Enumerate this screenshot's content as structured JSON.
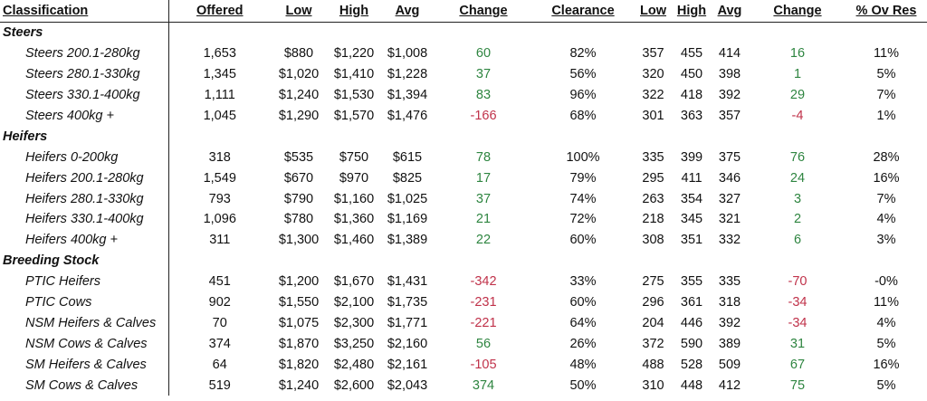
{
  "headers": [
    "Classification",
    "Offered",
    "Low",
    "High",
    "Avg",
    "Change",
    "Clearance",
    "Low",
    "High",
    "Avg",
    "Change",
    "% Ov Res"
  ],
  "rows": [
    {
      "type": "group",
      "label": "Steers"
    },
    {
      "type": "item",
      "label": "Steers 200.1-280kg",
      "offered": "1,653",
      "low": "$880",
      "high": "$1,220",
      "avg": "$1,008",
      "change": "60",
      "change_sign": "pos",
      "clearance": "82%",
      "low2": "357",
      "high2": "455",
      "avg2": "414",
      "change2": "16",
      "change2_sign": "pos",
      "ovres": "11%"
    },
    {
      "type": "item",
      "label": "Steers 280.1-330kg",
      "offered": "1,345",
      "low": "$1,020",
      "high": "$1,410",
      "avg": "$1,228",
      "change": "37",
      "change_sign": "pos",
      "clearance": "56%",
      "low2": "320",
      "high2": "450",
      "avg2": "398",
      "change2": "1",
      "change2_sign": "pos",
      "ovres": "5%"
    },
    {
      "type": "item",
      "label": "Steers 330.1-400kg",
      "offered": "1,111",
      "low": "$1,240",
      "high": "$1,530",
      "avg": "$1,394",
      "change": "83",
      "change_sign": "pos",
      "clearance": "96%",
      "low2": "322",
      "high2": "418",
      "avg2": "392",
      "change2": "29",
      "change2_sign": "pos",
      "ovres": "7%"
    },
    {
      "type": "item",
      "label": "Steers 400kg +",
      "offered": "1,045",
      "low": "$1,290",
      "high": "$1,570",
      "avg": "$1,476",
      "change": "-166",
      "change_sign": "neg",
      "clearance": "68%",
      "low2": "301",
      "high2": "363",
      "avg2": "357",
      "change2": "-4",
      "change2_sign": "neg",
      "ovres": "1%"
    },
    {
      "type": "group",
      "label": "Heifers"
    },
    {
      "type": "item",
      "label": "Heifers 0-200kg",
      "offered": "318",
      "low": "$535",
      "high": "$750",
      "avg": "$615",
      "change": "78",
      "change_sign": "pos",
      "clearance": "100%",
      "low2": "335",
      "high2": "399",
      "avg2": "375",
      "change2": "76",
      "change2_sign": "pos",
      "ovres": "28%"
    },
    {
      "type": "item",
      "label": "Heifers 200.1-280kg",
      "offered": "1,549",
      "low": "$670",
      "high": "$970",
      "avg": "$825",
      "change": "17",
      "change_sign": "pos",
      "clearance": "79%",
      "low2": "295",
      "high2": "411",
      "avg2": "346",
      "change2": "24",
      "change2_sign": "pos",
      "ovres": "16%"
    },
    {
      "type": "item",
      "label": "Heifers 280.1-330kg",
      "offered": "793",
      "low": "$790",
      "high": "$1,160",
      "avg": "$1,025",
      "change": "37",
      "change_sign": "pos",
      "clearance": "74%",
      "low2": "263",
      "high2": "354",
      "avg2": "327",
      "change2": "3",
      "change2_sign": "pos",
      "ovres": "7%"
    },
    {
      "type": "item",
      "label": "Heifers 330.1-400kg",
      "offered": "1,096",
      "low": "$780",
      "high": "$1,360",
      "avg": "$1,169",
      "change": "21",
      "change_sign": "pos",
      "clearance": "72%",
      "low2": "218",
      "high2": "345",
      "avg2": "321",
      "change2": "2",
      "change2_sign": "pos",
      "ovres": "4%"
    },
    {
      "type": "item",
      "label": "Heifers 400kg +",
      "offered": "311",
      "low": "$1,300",
      "high": "$1,460",
      "avg": "$1,389",
      "change": "22",
      "change_sign": "pos",
      "clearance": "60%",
      "low2": "308",
      "high2": "351",
      "avg2": "332",
      "change2": "6",
      "change2_sign": "pos",
      "ovres": "3%"
    },
    {
      "type": "group",
      "label": "Breeding Stock"
    },
    {
      "type": "item",
      "label": "PTIC Heifers",
      "offered": "451",
      "low": "$1,200",
      "high": "$1,670",
      "avg": "$1,431",
      "change": "-342",
      "change_sign": "neg",
      "clearance": "33%",
      "low2": "275",
      "high2": "355",
      "avg2": "335",
      "change2": "-70",
      "change2_sign": "neg",
      "ovres": "-0%"
    },
    {
      "type": "item",
      "label": "PTIC Cows",
      "offered": "902",
      "low": "$1,550",
      "high": "$2,100",
      "avg": "$1,735",
      "change": "-231",
      "change_sign": "neg",
      "clearance": "60%",
      "low2": "296",
      "high2": "361",
      "avg2": "318",
      "change2": "-34",
      "change2_sign": "neg",
      "ovres": "11%"
    },
    {
      "type": "item",
      "label": "NSM Heifers & Calves",
      "offered": "70",
      "low": "$1,075",
      "high": "$2,300",
      "avg": "$1,771",
      "change": "-221",
      "change_sign": "neg",
      "clearance": "64%",
      "low2": "204",
      "high2": "446",
      "avg2": "392",
      "change2": "-34",
      "change2_sign": "neg",
      "ovres": "4%"
    },
    {
      "type": "item",
      "label": "NSM Cows & Calves",
      "offered": "374",
      "low": "$1,870",
      "high": "$3,250",
      "avg": "$2,160",
      "change": "56",
      "change_sign": "pos",
      "clearance": "26%",
      "low2": "372",
      "high2": "590",
      "avg2": "389",
      "change2": "31",
      "change2_sign": "pos",
      "ovres": "5%"
    },
    {
      "type": "item",
      "label": "SM Heifers & Calves",
      "offered": "64",
      "low": "$1,820",
      "high": "$2,480",
      "avg": "$2,161",
      "change": "-105",
      "change_sign": "neg",
      "clearance": "48%",
      "low2": "488",
      "high2": "528",
      "avg2": "509",
      "change2": "67",
      "change2_sign": "pos",
      "ovres": "16%"
    },
    {
      "type": "item",
      "label": "SM Cows & Calves",
      "offered": "519",
      "low": "$1,240",
      "high": "$2,600",
      "avg": "$2,043",
      "change": "374",
      "change_sign": "pos",
      "clearance": "50%",
      "low2": "310",
      "high2": "448",
      "avg2": "412",
      "change2": "75",
      "change2_sign": "pos",
      "ovres": "5%"
    }
  ],
  "colors": {
    "positive": "#2e8540",
    "negative": "#c0324a"
  }
}
